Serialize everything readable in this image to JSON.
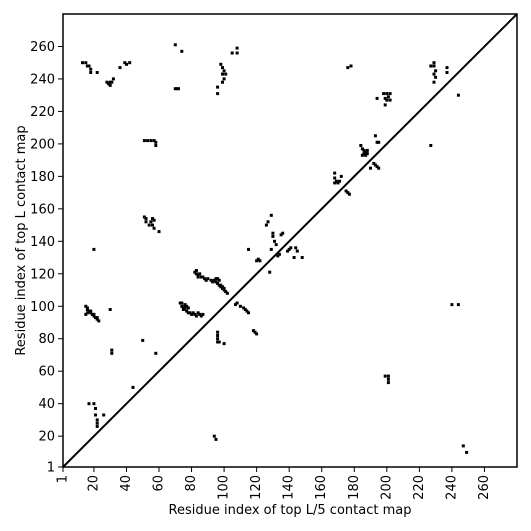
{
  "chart_data": {
    "type": "scatter",
    "xlabel": "Residue index of top L/5 contact map",
    "ylabel": "Residue index of top L contact map",
    "xlim": [
      1,
      280
    ],
    "ylim": [
      1,
      280
    ],
    "x_ticks": [
      1,
      20,
      40,
      60,
      80,
      100,
      120,
      140,
      160,
      180,
      200,
      220,
      240,
      260
    ],
    "y_ticks": [
      1,
      20,
      40,
      60,
      80,
      100,
      120,
      140,
      160,
      180,
      200,
      220,
      240,
      260
    ],
    "diagonal": true,
    "grid": false,
    "marker_color": "#000000",
    "series": [
      {
        "points": [
          [
            77,
            97
          ],
          [
            78,
            96
          ],
          [
            79,
            96
          ],
          [
            80,
            95
          ],
          [
            81,
            96
          ],
          [
            82,
            95
          ],
          [
            83,
            94
          ],
          [
            84,
            96
          ],
          [
            85,
            95
          ],
          [
            86,
            94
          ],
          [
            87,
            95
          ],
          [
            74,
            100
          ],
          [
            75,
            99
          ],
          [
            76,
            101
          ],
          [
            77,
            100
          ],
          [
            78,
            99
          ],
          [
            76,
            98
          ],
          [
            75,
            98
          ],
          [
            73,
            102
          ],
          [
            74,
            102
          ],
          [
            76,
            100
          ],
          [
            82,
            121
          ],
          [
            83,
            120
          ],
          [
            84,
            119
          ],
          [
            85,
            120
          ],
          [
            86,
            118
          ],
          [
            83,
            122
          ],
          [
            84,
            118
          ],
          [
            88,
            117
          ],
          [
            89,
            116
          ],
          [
            87,
            118
          ],
          [
            90,
            117
          ],
          [
            92,
            116
          ],
          [
            93,
            115
          ],
          [
            94,
            116
          ],
          [
            95,
            115
          ],
          [
            96,
            114
          ],
          [
            97,
            113
          ],
          [
            98,
            112
          ],
          [
            99,
            111
          ],
          [
            100,
            110
          ],
          [
            101,
            109
          ],
          [
            102,
            108
          ],
          [
            96,
            117
          ],
          [
            97,
            116
          ],
          [
            95,
            117
          ],
          [
            98,
            113
          ],
          [
            99,
            112
          ],
          [
            100,
            111
          ],
          [
            96,
            84
          ],
          [
            96,
            82
          ],
          [
            96,
            80
          ],
          [
            96,
            78
          ],
          [
            97,
            78
          ],
          [
            100,
            77
          ],
          [
            113,
            98
          ],
          [
            112,
            99
          ],
          [
            110,
            100
          ],
          [
            115,
            96
          ],
          [
            114,
            97
          ],
          [
            108,
            102
          ],
          [
            118,
            85
          ],
          [
            119,
            84
          ],
          [
            120,
            83
          ],
          [
            121,
            129
          ],
          [
            122,
            128
          ],
          [
            128,
            121
          ],
          [
            129,
            135
          ],
          [
            133,
            131
          ],
          [
            134,
            132
          ],
          [
            135,
            144
          ],
          [
            136,
            145
          ],
          [
            139,
            134
          ],
          [
            140,
            135
          ],
          [
            141,
            136
          ],
          [
            143,
            130
          ],
          [
            148,
            130
          ],
          [
            15,
            100
          ],
          [
            16,
            99
          ],
          [
            17,
            97
          ],
          [
            18,
            96
          ],
          [
            19,
            95
          ],
          [
            20,
            94
          ],
          [
            21,
            93
          ],
          [
            22,
            92
          ],
          [
            23,
            91
          ],
          [
            16,
            98
          ],
          [
            18,
            97
          ],
          [
            20,
            95
          ],
          [
            16,
            96
          ],
          [
            15,
            95
          ],
          [
            22,
            93
          ],
          [
            51,
            155
          ],
          [
            52,
            154
          ],
          [
            56,
            154
          ],
          [
            55,
            152
          ],
          [
            57,
            153
          ],
          [
            54,
            150
          ],
          [
            56,
            150
          ],
          [
            57,
            148
          ],
          [
            60,
            146
          ],
          [
            52,
            152
          ],
          [
            51,
            202
          ],
          [
            53,
            202
          ],
          [
            55,
            202
          ],
          [
            57,
            202
          ],
          [
            58,
            201
          ],
          [
            58,
            199
          ],
          [
            70,
            234
          ],
          [
            71,
            234
          ],
          [
            72,
            234
          ],
          [
            74,
            257
          ],
          [
            70,
            261
          ],
          [
            13,
            250
          ],
          [
            15,
            250
          ],
          [
            16,
            248
          ],
          [
            17,
            248
          ],
          [
            18,
            246
          ],
          [
            18,
            244
          ],
          [
            22,
            244
          ],
          [
            28,
            238
          ],
          [
            29,
            237
          ],
          [
            30,
            238
          ],
          [
            31,
            238
          ],
          [
            32,
            240
          ],
          [
            30,
            236
          ],
          [
            36,
            247
          ],
          [
            39,
            250
          ],
          [
            40,
            249
          ],
          [
            42,
            250
          ],
          [
            98,
            249
          ],
          [
            99,
            247
          ],
          [
            100,
            245
          ],
          [
            101,
            243
          ],
          [
            99,
            243
          ],
          [
            100,
            240
          ],
          [
            96,
            235
          ],
          [
            96,
            231
          ],
          [
            99,
            238
          ],
          [
            105,
            256
          ],
          [
            108,
            256
          ],
          [
            108,
            259
          ],
          [
            20,
            40
          ],
          [
            17,
            40
          ],
          [
            21,
            37
          ],
          [
            21,
            33
          ],
          [
            22,
            30
          ],
          [
            22,
            28
          ],
          [
            22,
            26
          ],
          [
            26,
            33
          ],
          [
            20,
            135
          ],
          [
            30,
            98
          ],
          [
            31,
            73
          ],
          [
            31,
            71
          ],
          [
            44,
            50
          ],
          [
            50,
            79
          ],
          [
            58,
            71
          ],
          [
            94,
            20
          ],
          [
            95,
            18
          ],
          [
            107,
            101
          ],
          [
            115,
            135
          ],
          [
            120,
            128
          ],
          [
            126,
            150
          ],
          [
            127,
            152
          ],
          [
            129,
            156
          ],
          [
            130,
            145
          ],
          [
            130,
            143
          ],
          [
            131,
            140
          ],
          [
            132,
            138
          ],
          [
            144,
            136
          ],
          [
            145,
            134
          ],
          [
            168,
            182
          ],
          [
            168,
            179
          ],
          [
            169,
            177
          ],
          [
            170,
            176
          ],
          [
            168,
            176
          ],
          [
            171,
            177
          ],
          [
            175,
            171
          ],
          [
            176,
            170
          ],
          [
            177,
            169
          ],
          [
            172,
            180
          ],
          [
            184,
            199
          ],
          [
            185,
            197
          ],
          [
            186,
            196
          ],
          [
            187,
            195
          ],
          [
            188,
            194
          ],
          [
            186,
            194
          ],
          [
            187,
            193
          ],
          [
            185,
            193
          ],
          [
            188,
            196
          ],
          [
            193,
            205
          ],
          [
            194,
            201
          ],
          [
            195,
            201
          ],
          [
            192,
            188
          ],
          [
            193,
            187
          ],
          [
            194,
            186
          ],
          [
            195,
            185
          ],
          [
            190,
            185
          ],
          [
            194,
            228
          ],
          [
            198,
            231
          ],
          [
            200,
            231
          ],
          [
            201,
            229
          ],
          [
            202,
            231
          ],
          [
            199,
            228
          ],
          [
            200,
            227
          ],
          [
            199,
            224
          ],
          [
            202,
            227
          ],
          [
            199,
            57
          ],
          [
            201,
            57
          ],
          [
            201,
            55
          ],
          [
            201,
            53
          ],
          [
            227,
            199
          ],
          [
            227,
            248
          ],
          [
            229,
            250
          ],
          [
            229,
            248
          ],
          [
            230,
            245
          ],
          [
            229,
            243
          ],
          [
            230,
            241
          ],
          [
            229,
            238
          ],
          [
            237,
            247
          ],
          [
            237,
            244
          ],
          [
            240,
            101
          ],
          [
            244,
            101
          ],
          [
            244,
            230
          ],
          [
            247,
            14
          ],
          [
            249,
            10
          ],
          [
            176,
            247
          ],
          [
            178,
            248
          ]
        ]
      }
    ]
  }
}
